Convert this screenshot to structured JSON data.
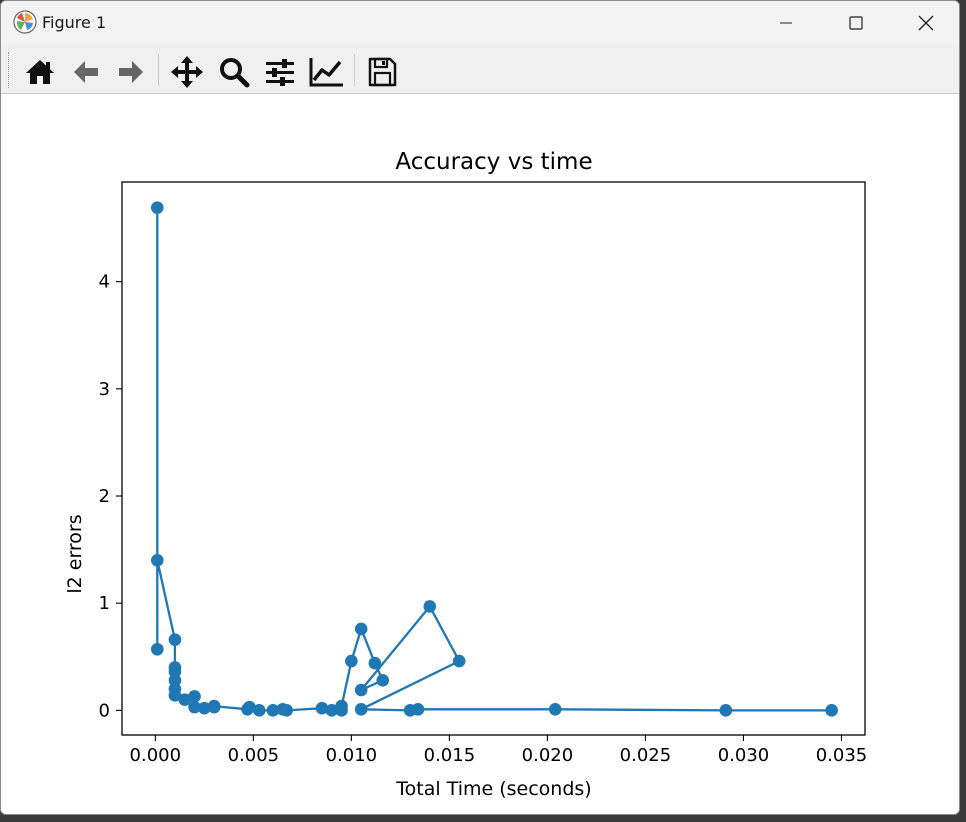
{
  "window": {
    "title": "Figure 1",
    "colors": {
      "titlebar": "#f3f3f3",
      "toolbar": "#f0f0f0"
    }
  },
  "toolbar": {
    "tools": [
      {
        "name": "home",
        "icon": "home-icon"
      },
      {
        "name": "back",
        "icon": "arrow-left-icon"
      },
      {
        "name": "forward",
        "icon": "arrow-right-icon"
      },
      {
        "name": "pan",
        "icon": "move-arrows-icon"
      },
      {
        "name": "zoom",
        "icon": "magnifier-icon"
      },
      {
        "name": "subplots",
        "icon": "sliders-icon"
      },
      {
        "name": "customize",
        "icon": "line-chart-icon"
      },
      {
        "name": "save",
        "icon": "floppy-disk-icon"
      }
    ]
  },
  "chart_data": {
    "type": "line",
    "title": "Accuracy vs time",
    "xlabel": "Total Time (seconds)",
    "ylabel": "l2 errors",
    "xlim": [
      -0.0017,
      0.0362
    ],
    "ylim": [
      -0.23,
      4.93
    ],
    "xticks": [
      "0.000",
      "0.005",
      "0.010",
      "0.015",
      "0.020",
      "0.025",
      "0.030",
      "0.035"
    ],
    "xtick_values": [
      0,
      0.005,
      0.01,
      0.015,
      0.02,
      0.025,
      0.03,
      0.035
    ],
    "yticks": [
      "0",
      "1",
      "2",
      "3",
      "4"
    ],
    "ytick_values": [
      0,
      1,
      2,
      3,
      4
    ],
    "grid": false,
    "marker": "circle",
    "color": "#1f77b4",
    "series": [
      {
        "x": [
          0.0001,
          0.0001,
          0.0001,
          0.001,
          0.001,
          0.001,
          0.001,
          0.001,
          0.001,
          0.0015,
          0.002,
          0.002,
          0.0025,
          0.003,
          0.003,
          0.0047,
          0.0048,
          0.0053,
          0.006,
          0.0065,
          0.0067,
          0.0085,
          0.009,
          0.0095,
          0.0095,
          0.01,
          0.0105,
          0.0112,
          0.0116,
          0.0105,
          0.014,
          0.0155,
          0.0105,
          0.013,
          0.0134,
          0.0204,
          0.0291,
          0.0345
        ],
        "y": [
          4.69,
          0.57,
          1.4,
          0.66,
          0.4,
          0.36,
          0.28,
          0.2,
          0.14,
          0.1,
          0.13,
          0.03,
          0.02,
          0.03,
          0.04,
          0.01,
          0.03,
          0.0,
          0.0,
          0.01,
          0.0,
          0.02,
          0.0,
          0.0,
          0.04,
          0.46,
          0.76,
          0.44,
          0.28,
          0.19,
          0.97,
          0.46,
          0.01,
          0.0,
          0.01,
          0.01,
          0.0,
          0.0
        ]
      }
    ]
  }
}
